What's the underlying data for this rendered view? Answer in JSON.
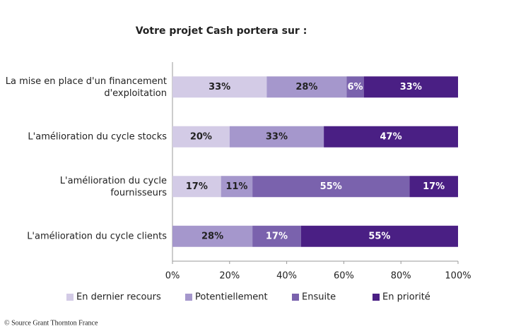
{
  "chart_data": {
    "type": "stacked-bar-horizontal",
    "title": "Votre projet Cash portera sur :",
    "categories": [
      "La mise en place d'un financement d'exploitation",
      "L'amélioration du cycle stocks",
      "L'amélioration du cycle fournisseurs",
      "L'amélioration du cycle clients"
    ],
    "series": [
      {
        "name": "En dernier recours",
        "color": "#d3cbe6",
        "values": [
          33,
          20,
          17,
          null
        ],
        "value_labels": [
          "33%",
          "20%",
          "17%",
          null
        ]
      },
      {
        "name": "Potentiellement",
        "color": "#a597cc",
        "values": [
          28,
          33,
          11,
          28
        ],
        "value_labels": [
          "28%",
          "33%",
          "11%",
          "28%"
        ]
      },
      {
        "name": "Ensuite",
        "color": "#7a62ad",
        "values": [
          6,
          null,
          55,
          17
        ],
        "value_labels": [
          "6%",
          null,
          "55%",
          "17%"
        ]
      },
      {
        "name": "En priorité",
        "color": "#4a1f84",
        "values": [
          33,
          47,
          17,
          55
        ],
        "value_labels": [
          "33%",
          "47%",
          "17%",
          "55%"
        ]
      }
    ],
    "xlim": [
      0,
      100
    ],
    "xticks": [
      {
        "value": 0,
        "label": "0%"
      },
      {
        "value": 20,
        "label": "20%"
      },
      {
        "value": 40,
        "label": "40%"
      },
      {
        "value": 60,
        "label": "60%"
      },
      {
        "value": 80,
        "label": "80%"
      },
      {
        "value": 100,
        "label": "100%"
      }
    ],
    "legend": "bottom",
    "source": "© Source Grant Thornton France"
  }
}
